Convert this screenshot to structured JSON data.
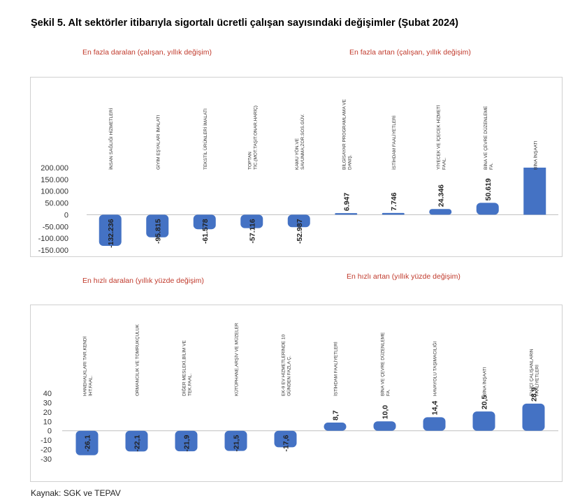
{
  "title": "Şekil 5. Alt sektörler itibarıyla sigortalı ücretli çalışan sayısındaki değişimler (Şubat 2024)",
  "source": "Kaynak: SGK ve TEPAV",
  "colors": {
    "bar": "#4472c4",
    "subtitle": "#c0392b"
  },
  "panels": [
    {
      "sub_left": "En fazla daralan (çalışan, yıllık değişim)",
      "sub_right": "En fazla artan (çalışan, yıllık değişim)"
    },
    {
      "sub_left": "En hızlı daralan (yıllık yüzde değişim)",
      "sub_right": "En hızlı artan (yıllık yüzde değişim)"
    }
  ],
  "chart_data": [
    {
      "type": "bar",
      "categories": [
        "İNSAN SAĞLIĞI HİZMETLERİ",
        "GİYİM EŞYALARI İMALATI",
        "TEKSTİL ÜRÜNLERİ İMALATI",
        "TOPTAN TİC.(MOT.TAŞIT.ONAR.HARİÇ)",
        "KAMU YÖN.VE SAVUNMA;ZOR.SOS.GÜV.",
        "BİLGİSAYAR PROGRAMLAMA VE DANIŞ.",
        "İSTİHDAM FAALİYETLERİ",
        "YİYECEK VE İÇECEK HİZMETİ FAAL.",
        "BİNA VE ÇEVRE DÜZENLEME FA.",
        "BİNA İNŞAATI"
      ],
      "values": [
        -132236,
        -95815,
        -61578,
        -57116,
        -52987,
        6947,
        7746,
        24346,
        50619,
        200000
      ],
      "data_labels": [
        "-132.236",
        "-95.815",
        "-61.578",
        "-57.116",
        "-52.987",
        "6.947",
        "7.746",
        "24.346",
        "50.619",
        ""
      ],
      "yticks": [
        "200.000",
        "150.000",
        "100.000",
        "50.000",
        "0",
        "-50.000",
        "-100.000",
        "-150.000"
      ],
      "ytick_values": [
        200000,
        150000,
        100000,
        50000,
        0,
        -50000,
        -100000,
        -150000
      ],
      "ylim": [
        -150000,
        200000
      ]
    },
    {
      "type": "bar",
      "categories": [
        "HANEHALKLARI TAR.KENDİ İHT.FAAL.",
        "ORMANCILIK VE TOMRUKÇULUK",
        "DİĞER MESLEKİ,BİLİM VE TEK.FAAL.",
        "KÜTÜPHANE,ARŞİV VE MÜZELER",
        "EK-9 EV HİZMETLERİNDE 10 GÜNDEN FAZLA Ç.",
        "İSTİHDAM FAALİYETLERİ",
        "BİNA VE ÇEVRE DÜZENLEME FA.",
        "HAVAYOLU TAŞIMACILIĞI",
        "BİNA İNŞAATI",
        "EV İÇİ ÇALIŞANLARIN FAALİYETLERİ"
      ],
      "values": [
        -26.1,
        -22.1,
        -21.9,
        -21.5,
        -17.6,
        8.7,
        10.0,
        14.4,
        20.5,
        28.9
      ],
      "data_labels": [
        "-26,1",
        "-22,1",
        "-21,9",
        "-21,5",
        "-17,6",
        "8,7",
        "10,0",
        "14,4",
        "20,5",
        "28,9"
      ],
      "yticks": [
        "40",
        "30",
        "20",
        "10",
        "0",
        "-10",
        "-20",
        "-30"
      ],
      "ytick_values": [
        40,
        30,
        20,
        10,
        0,
        -10,
        -20,
        -30
      ],
      "ylim": [
        -30,
        40
      ]
    }
  ]
}
